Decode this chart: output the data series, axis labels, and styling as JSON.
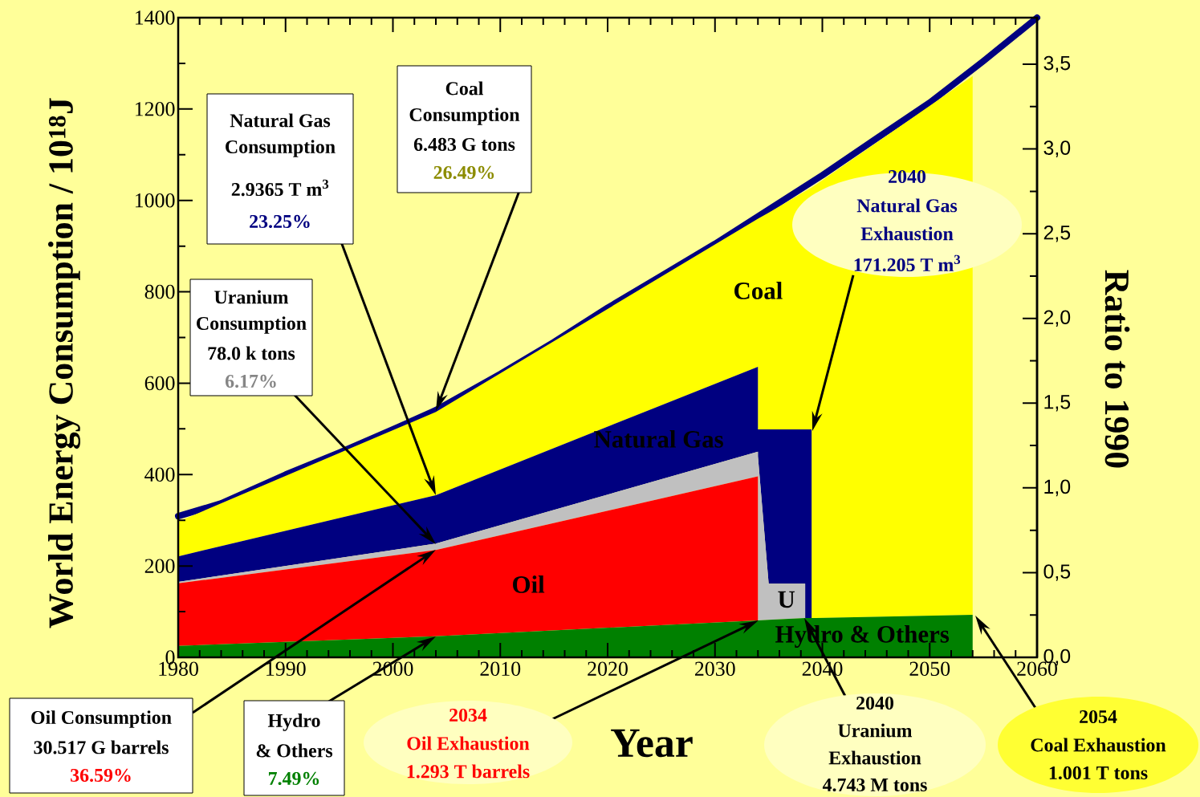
{
  "chart_data": {
    "type": "area",
    "stacked": true,
    "x": [
      1980,
      2004,
      2034,
      2034,
      2035,
      2038.4,
      2038.4,
      2039,
      2039,
      2054,
      2054
    ],
    "series": [
      {
        "name": "Hydro & Others",
        "color": "#008000",
        "values": [
          25,
          46,
          81,
          81,
          82,
          86,
          86,
          86,
          86,
          93,
          0
        ]
      },
      {
        "name": "Oil",
        "color": "#ff0000",
        "values": [
          137,
          189,
          315,
          0,
          0,
          0,
          0,
          0,
          0,
          0,
          0
        ]
      },
      {
        "name": "U",
        "color": "#c0c0c0",
        "values": [
          3,
          14,
          54,
          359,
          79,
          75,
          0,
          0,
          0,
          0,
          0
        ]
      },
      {
        "name": "Natural Gas",
        "color": "#000080",
        "values": [
          56,
          106,
          186,
          59,
          338,
          338,
          413,
          413,
          0,
          0,
          0
        ]
      },
      {
        "name": "Coal",
        "color": "#ffff00",
        "values": [
          76,
          182,
          324,
          461,
          474,
          521,
          521,
          529,
          942,
          1179,
          0
        ]
      },
      {
        "type": "line",
        "color": "#000080",
        "x": [
          1980,
          1984,
          1990,
          1995,
          2000,
          2004,
          2010,
          2015,
          2020,
          2025,
          2030,
          2035,
          2040,
          2045,
          2050,
          2055,
          2060
        ],
        "values": [
          309,
          337,
          400,
          448,
          499,
          541,
          620,
          690,
          765,
          835,
          905,
          980,
          1055,
          1135,
          1214,
          1305,
          1400
        ]
      }
    ],
    "xlim": [
      1980,
      2060
    ],
    "xticks": [
      1980,
      1990,
      2000,
      2010,
      2020,
      2030,
      2040,
      2050,
      2060
    ],
    "ylim": [
      0,
      1400
    ],
    "yticks": [
      0,
      200,
      400,
      600,
      800,
      1000,
      1200,
      1400
    ],
    "y2lim": [
      0,
      3.775
    ],
    "y2ticks": [
      {
        "value": 0,
        "label": "0,0"
      },
      {
        "value": 0.5,
        "label": "0,5"
      },
      {
        "value": 1,
        "label": "1,0"
      },
      {
        "value": 1.5,
        "label": "1,5"
      },
      {
        "value": 2,
        "label": "2,0"
      },
      {
        "value": 2.5,
        "label": "2,5"
      },
      {
        "value": 3,
        "label": "3,0"
      },
      {
        "value": 3.5,
        "label": "3,5"
      }
    ],
    "xlabel": "Year",
    "ylabel": "World Energy Consumption / 10$^{18}$J",
    "y2label": "Ratio to 1990",
    "annotations": [
      "Coal",
      "Consumption",
      "6.483 G tons",
      "26.49%",
      "Natural Gas",
      "Consumption",
      "2.9365 T m$^{3}$",
      "23.25%",
      "Uranium",
      "Consumption",
      "78.0 k tons",
      "6.17%",
      "Oil Consumption",
      "30.517 G barrels",
      "36.59%",
      "Hydro",
      "& Others",
      "7.49%",
      "2034",
      "Oil Exhaustion",
      "1.293 T barrels",
      "2040",
      "Uranium",
      "Exhaustion",
      "4.743 M tons",
      "2040",
      "Natural Gas",
      "Exhaustion",
      "171.205 T m$^{3}$",
      "2054",
      "Coal Exhaustion",
      "1.001 T tons"
    ]
  }
}
